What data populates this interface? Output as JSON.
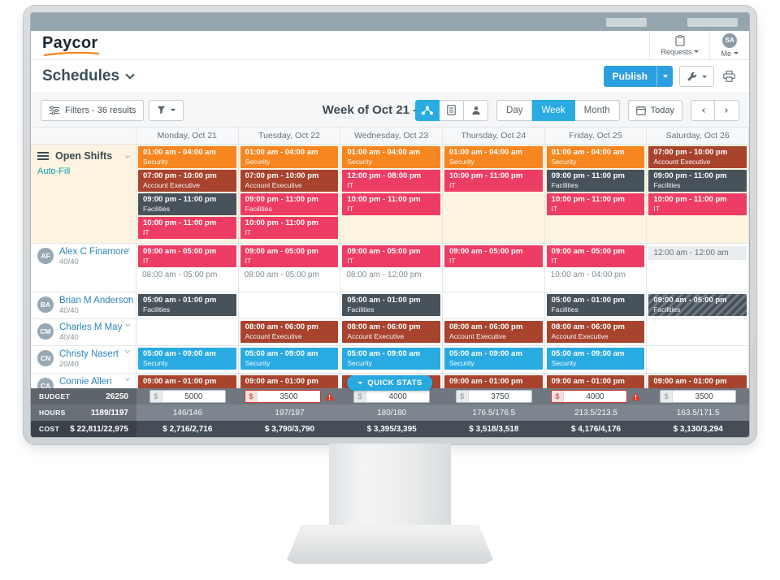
{
  "header": {
    "logo_text": "Paycor",
    "requests_label": "Requests",
    "me_label": "Me",
    "avatar_initials": "SA"
  },
  "toolbar": {
    "title": "Schedules",
    "publish_label": "Publish"
  },
  "controls": {
    "filters_label": "Filters - 36 results",
    "week_title": "Week of Oct 21 - Oct 27",
    "day_label": "Day",
    "week_label": "Week",
    "month_label": "Month",
    "today_label": "Today"
  },
  "colors": {
    "orange": "#f6861f",
    "brick": "#a8432e",
    "pink": "#ee3d64",
    "slate": "#47525b",
    "cyan": "#29abe2"
  },
  "grid": {
    "days": [
      "Monday, Oct 21",
      "Tuesday, Oct 22",
      "Wednesday, Oct 23",
      "Thursday, Oct 24",
      "Friday, Oct 25",
      "Saturday, Oct 26"
    ],
    "open_row": {
      "title": "Open Shifts",
      "autofill_label": "Auto-Fill",
      "cells": [
        [
          {
            "t": "01:00 am - 04:00 am",
            "r": "Security",
            "c": "orange"
          },
          {
            "t": "07:00 pm - 10:00 pm",
            "r": "Account Executive",
            "c": "brick"
          },
          {
            "t": "09:00 pm - 11:00 pm",
            "r": "Facilities",
            "c": "slate"
          },
          {
            "t": "10:00 pm - 11:00 pm",
            "r": "IT",
            "c": "pink"
          }
        ],
        [
          {
            "t": "01:00 am - 04:00 am",
            "r": "Security",
            "c": "orange"
          },
          {
            "t": "07:00 pm - 10:00 pm",
            "r": "Account Executive",
            "c": "brick"
          },
          {
            "t": "09:00 pm - 11:00 pm",
            "r": "Facilities",
            "c": "pink"
          },
          {
            "t": "10:00 pm - 11:00 pm",
            "r": "IT",
            "c": "pink"
          }
        ],
        [
          {
            "t": "01:00 am - 04:00 am",
            "r": "Security",
            "c": "orange"
          },
          {
            "t": "12:00 pm - 08:00 pm",
            "r": "IT",
            "c": "pink"
          },
          {
            "t": "10:00 pm - 11:00 pm",
            "r": "IT",
            "c": "pink"
          }
        ],
        [
          {
            "t": "01:00 am - 04:00 am",
            "r": "Security",
            "c": "orange"
          },
          {
            "t": "10:00 pm - 11:00 pm",
            "r": "IT",
            "c": "pink"
          }
        ],
        [
          {
            "t": "01:00 am - 04:00 am",
            "r": "Security",
            "c": "orange"
          },
          {
            "t": "09:00 pm - 11:00 pm",
            "r": "Facilities",
            "c": "slate"
          },
          {
            "t": "10:00 pm - 11:00 pm",
            "r": "IT",
            "c": "pink"
          }
        ],
        [
          {
            "t": "07:00 pm - 10:00 pm",
            "r": "Account Executive",
            "c": "brick"
          },
          {
            "t": "09:00 pm - 11:00 pm",
            "r": "Facilities",
            "c": "slate"
          },
          {
            "t": "10:00 pm - 11:00 pm",
            "r": "IT",
            "c": "pink"
          }
        ]
      ]
    },
    "employees": [
      {
        "initials": "AF",
        "name": "Alex C Finamore",
        "hours": "40/40",
        "cells": [
          [
            {
              "t": "09:00 am - 05:00 pm",
              "r": "IT",
              "c": "pink"
            },
            {
              "t": "08:00 am - 05:00 pm",
              "variant": "note"
            }
          ],
          [
            {
              "t": "09:00 am - 05:00 pm",
              "r": "IT",
              "c": "pink"
            },
            {
              "t": "08:00 am - 05:00 pm",
              "variant": "note"
            }
          ],
          [
            {
              "t": "09:00 am - 05:00 pm",
              "r": "IT",
              "c": "pink"
            },
            {
              "t": "08:00 am - 12:00 pm",
              "variant": "note"
            }
          ],
          [
            {
              "t": "09:00 am - 05:00 pm",
              "r": "IT",
              "c": "pink"
            }
          ],
          [
            {
              "t": "09:00 am - 05:00 pm",
              "r": "IT",
              "c": "pink"
            },
            {
              "t": "10:00 am - 04:00 pm",
              "variant": "note"
            }
          ],
          [
            {
              "t": "12:00 am - 12:00 am",
              "variant": "muted"
            }
          ]
        ]
      },
      {
        "initials": "BA",
        "name": "Brian M Anderson",
        "hours": "40/40",
        "cells": [
          [
            {
              "t": "05:00 am - 01:00 pm",
              "r": "Facilities",
              "c": "slate"
            }
          ],
          [],
          [
            {
              "t": "05:00 am - 01:00 pm",
              "r": "Facilities",
              "c": "slate"
            }
          ],
          [],
          [
            {
              "t": "05:00 am - 01:00 pm",
              "r": "Facilities",
              "c": "slate"
            }
          ],
          [
            {
              "t": "09:00 am - 05:00 pm",
              "r": "Facilities",
              "c": "slate",
              "hatch": true
            }
          ]
        ]
      },
      {
        "initials": "CM",
        "name": "Charles M May",
        "hours": "40/40",
        "cells": [
          [],
          [
            {
              "t": "08:00 am - 06:00 pm",
              "r": "Account Executive",
              "c": "brick"
            }
          ],
          [
            {
              "t": "08:00 am - 06:00 pm",
              "r": "Account Executive",
              "c": "brick"
            }
          ],
          [
            {
              "t": "08:00 am - 06:00 pm",
              "r": "Account Executive",
              "c": "brick"
            }
          ],
          [
            {
              "t": "08:00 am - 06:00 pm",
              "r": "Account Executive",
              "c": "brick"
            }
          ],
          []
        ]
      },
      {
        "initials": "CN",
        "name": "Christy Nasert",
        "hours": "20/40",
        "cells": [
          [
            {
              "t": "05:00 am - 09:00 am",
              "r": "Security",
              "c": "cyan"
            }
          ],
          [
            {
              "t": "05:00 am - 09:00 am",
              "r": "Security",
              "c": "cyan"
            }
          ],
          [
            {
              "t": "05:00 am - 09:00 am",
              "r": "Security",
              "c": "cyan"
            }
          ],
          [
            {
              "t": "05:00 am - 09:00 am",
              "r": "Security",
              "c": "cyan"
            }
          ],
          [
            {
              "t": "05:00 am - 09:00 am",
              "r": "Security",
              "c": "cyan"
            }
          ],
          []
        ]
      },
      {
        "initials": "CA",
        "name": "Connie Allen",
        "hours": "",
        "cells": [
          [
            {
              "t": "09:00 am - 01:00 pm",
              "r": "",
              "c": "brick"
            }
          ],
          [
            {
              "t": "09:00 am - 01:00 pm",
              "r": "",
              "c": "brick"
            }
          ],
          [
            {
              "t": "09:00 am - 01:00 pm",
              "r": "",
              "c": "brick"
            }
          ],
          [
            {
              "t": "09:00 am - 01:00 pm",
              "r": "",
              "c": "brick"
            }
          ],
          [
            {
              "t": "09:00 am - 01:00 pm",
              "r": "",
              "c": "brick"
            }
          ],
          [
            {
              "t": "09:00 am - 01:00 pm",
              "r": "",
              "c": "brick"
            }
          ]
        ]
      }
    ]
  },
  "quick_stats": {
    "label": "QUICK STATS"
  },
  "stats": {
    "budget": {
      "label": "BUDGET",
      "total": "26250",
      "currency": "$",
      "inputs": [
        {
          "v": "5000",
          "err": false
        },
        {
          "v": "3500",
          "err": true
        },
        {
          "v": "4000",
          "err": false
        },
        {
          "v": "3750",
          "err": false
        },
        {
          "v": "4000",
          "err": true
        },
        {
          "v": "3500",
          "err": false
        }
      ]
    },
    "hours": {
      "label": "HOURS",
      "total": "1189/1197",
      "values": [
        "146/146",
        "197/197",
        "180/180",
        "176.5/176.5",
        "213.5/213.5",
        "163.5/171.5"
      ]
    },
    "cost": {
      "label": "COST",
      "total": "$ 22,811/22,975",
      "values": [
        "$ 2,716/2,716",
        "$ 3,790/3,790",
        "$ 3,395/3,395",
        "$ 3,518/3,518",
        "$ 4,176/4,176",
        "$ 3,130/3,294"
      ]
    }
  }
}
